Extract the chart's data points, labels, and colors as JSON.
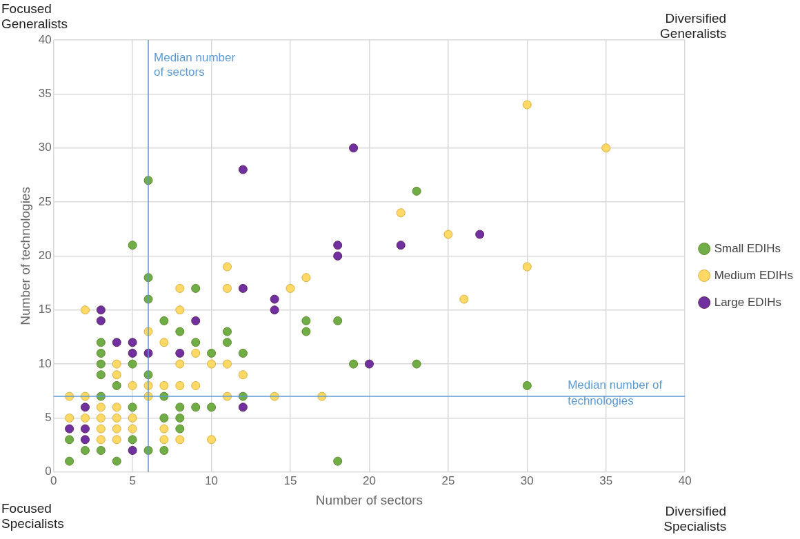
{
  "chart_data": {
    "type": "scatter",
    "xlabel": "Number of sectors",
    "ylabel": "Number of technologies",
    "xlim": [
      0,
      40
    ],
    "xticks": [
      0,
      5,
      10,
      15,
      20,
      25,
      30,
      35,
      40
    ],
    "ylim": [
      0,
      40
    ],
    "yticks": [
      0,
      5,
      10,
      15,
      20,
      25,
      30,
      35,
      40
    ],
    "grid": true,
    "legend": "right",
    "marker": "circle",
    "series": [
      {
        "name": "Small EDIHs",
        "color": "#70ad47",
        "x": [
          1,
          1,
          2,
          3,
          3,
          3,
          3,
          3,
          3,
          4,
          4,
          5,
          5,
          5,
          5,
          6,
          6,
          6,
          6,
          6,
          7,
          7,
          7,
          7,
          8,
          8,
          8,
          8,
          9,
          9,
          9,
          10,
          10,
          11,
          11,
          12,
          12,
          16,
          16,
          18,
          18,
          19,
          23,
          23,
          30
        ],
        "values": [
          1,
          3,
          2,
          2,
          7,
          9,
          10,
          11,
          12,
          1,
          8,
          3,
          6,
          10,
          21,
          2,
          9,
          16,
          18,
          27,
          2,
          5,
          7,
          14,
          4,
          5,
          6,
          13,
          6,
          12,
          17,
          6,
          11,
          12,
          13,
          7,
          11,
          13,
          14,
          1,
          14,
          10,
          10,
          26,
          8
        ]
      },
      {
        "name": "Medium EDIHs",
        "color": "#ffd966",
        "x": [
          1,
          1,
          2,
          2,
          2,
          3,
          3,
          3,
          3,
          4,
          4,
          4,
          4,
          4,
          4,
          5,
          5,
          5,
          6,
          6,
          6,
          7,
          7,
          7,
          7,
          8,
          8,
          8,
          8,
          8,
          9,
          9,
          10,
          10,
          11,
          11,
          11,
          11,
          12,
          14,
          15,
          16,
          17,
          22,
          25,
          26,
          30,
          30,
          35
        ],
        "values": [
          5,
          7,
          5,
          7,
          15,
          3,
          4,
          5,
          6,
          3,
          4,
          5,
          6,
          9,
          10,
          4,
          5,
          8,
          7,
          8,
          13,
          3,
          4,
          8,
          12,
          3,
          8,
          10,
          15,
          17,
          8,
          11,
          3,
          10,
          7,
          10,
          17,
          19,
          9,
          7,
          17,
          18,
          7,
          24,
          22,
          16,
          19,
          34,
          30
        ]
      },
      {
        "name": "Large EDIHs",
        "color": "#7030a0",
        "x": [
          1,
          2,
          2,
          2,
          3,
          3,
          4,
          5,
          5,
          5,
          6,
          8,
          9,
          12,
          12,
          12,
          14,
          14,
          18,
          18,
          19,
          20,
          22,
          27
        ],
        "values": [
          4,
          3,
          4,
          6,
          14,
          15,
          12,
          2,
          11,
          12,
          11,
          11,
          14,
          6,
          17,
          28,
          15,
          16,
          20,
          21,
          30,
          10,
          21,
          22
        ]
      }
    ],
    "ref_lines": [
      {
        "axis": "x",
        "value": 6,
        "label": "Median number of sectors",
        "color": "#5b9bd5"
      },
      {
        "axis": "y",
        "value": 7,
        "label": "Median number of technologies",
        "color": "#5b9bd5"
      }
    ],
    "annotations": [
      "Focused Generalists",
      "Diversified Generalists",
      "Focused Specialists",
      "Diversified Specialists"
    ]
  }
}
